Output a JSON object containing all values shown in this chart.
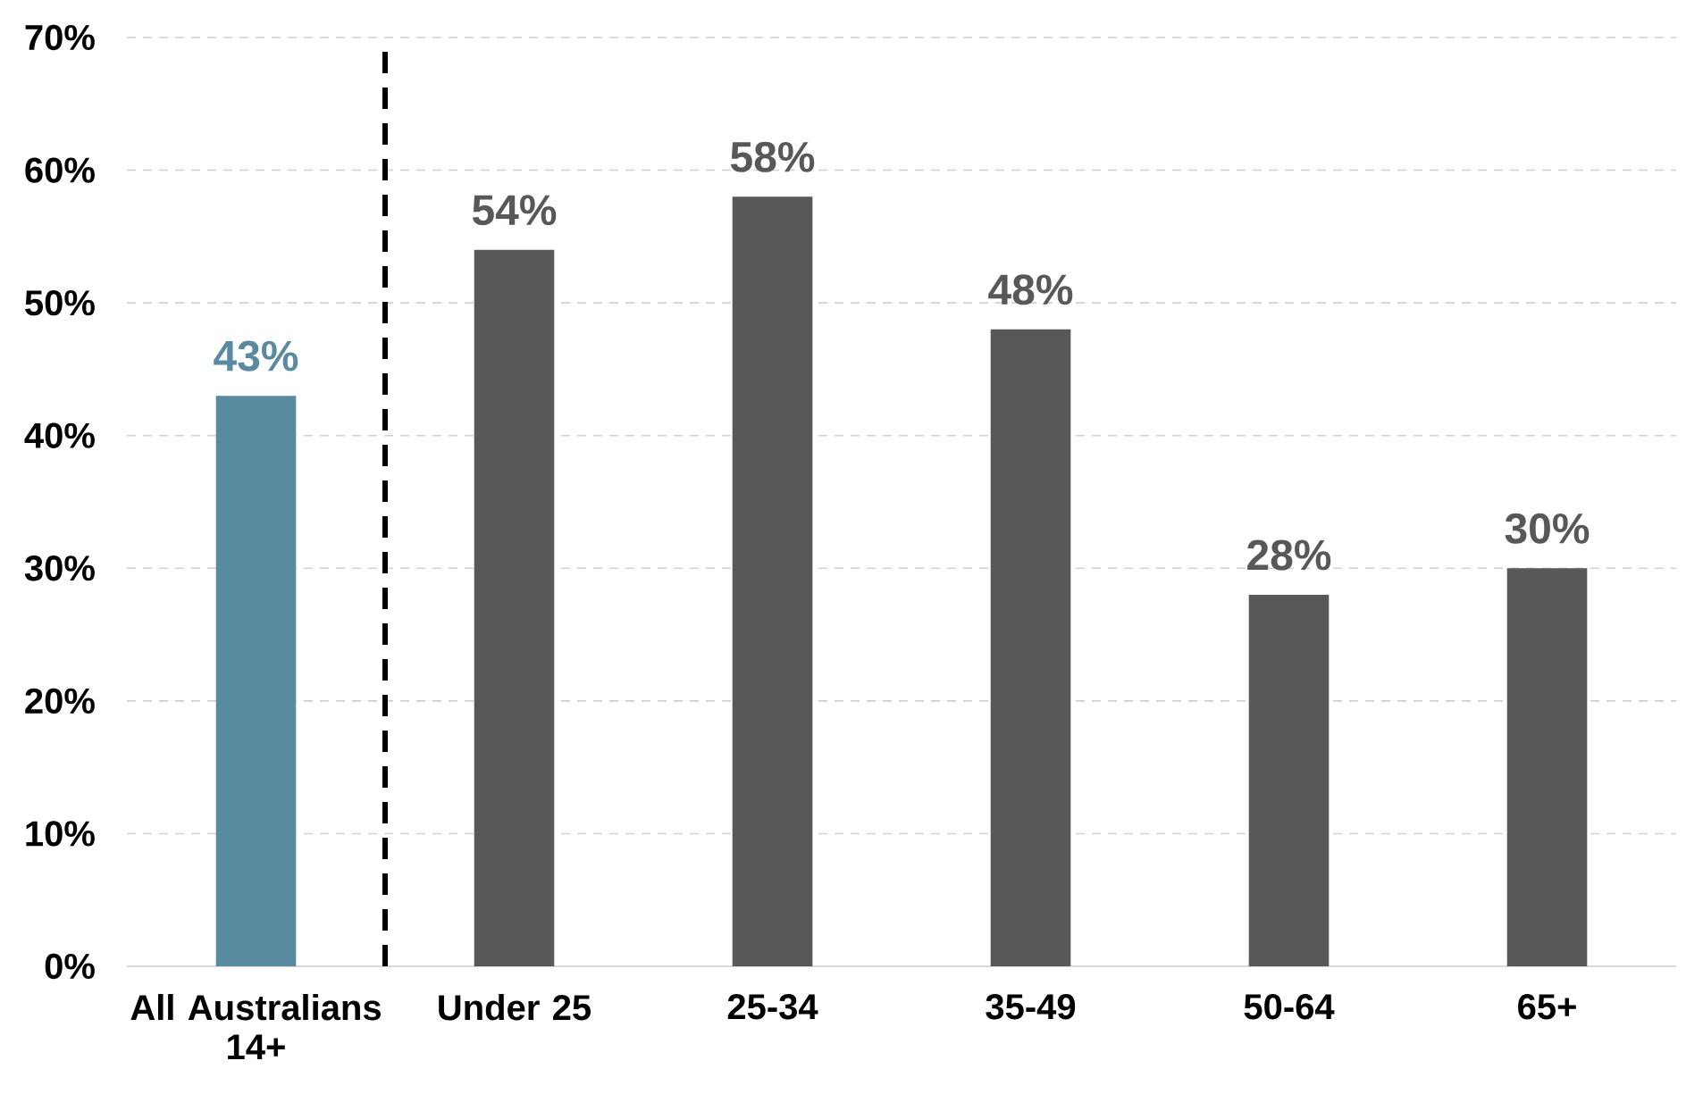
{
  "chart_data": {
    "type": "bar",
    "categories": [
      "All Australians 14+",
      "Under 25",
      "25-34",
      "35-49",
      "50-64",
      "65+"
    ],
    "values": [
      43,
      54,
      58,
      48,
      28,
      30
    ],
    "colors": [
      "#5a8a9f",
      "#595757",
      "#595757",
      "#595757",
      "#595757",
      "#595757"
    ],
    "value_labels": [
      "43%",
      "54%",
      "58%",
      "48%",
      "28%",
      "30%"
    ],
    "ylim": [
      0,
      70
    ],
    "yticks": [
      {
        "value": 0,
        "label": "0%"
      },
      {
        "value": 10,
        "label": "10%"
      },
      {
        "value": 20,
        "label": "20%"
      },
      {
        "value": 30,
        "label": "30%"
      },
      {
        "value": 40,
        "label": "40%"
      },
      {
        "value": 50,
        "label": "50%"
      },
      {
        "value": 60,
        "label": "60%"
      },
      {
        "value": 70,
        "label": "70%"
      }
    ],
    "grid": "y"
  }
}
